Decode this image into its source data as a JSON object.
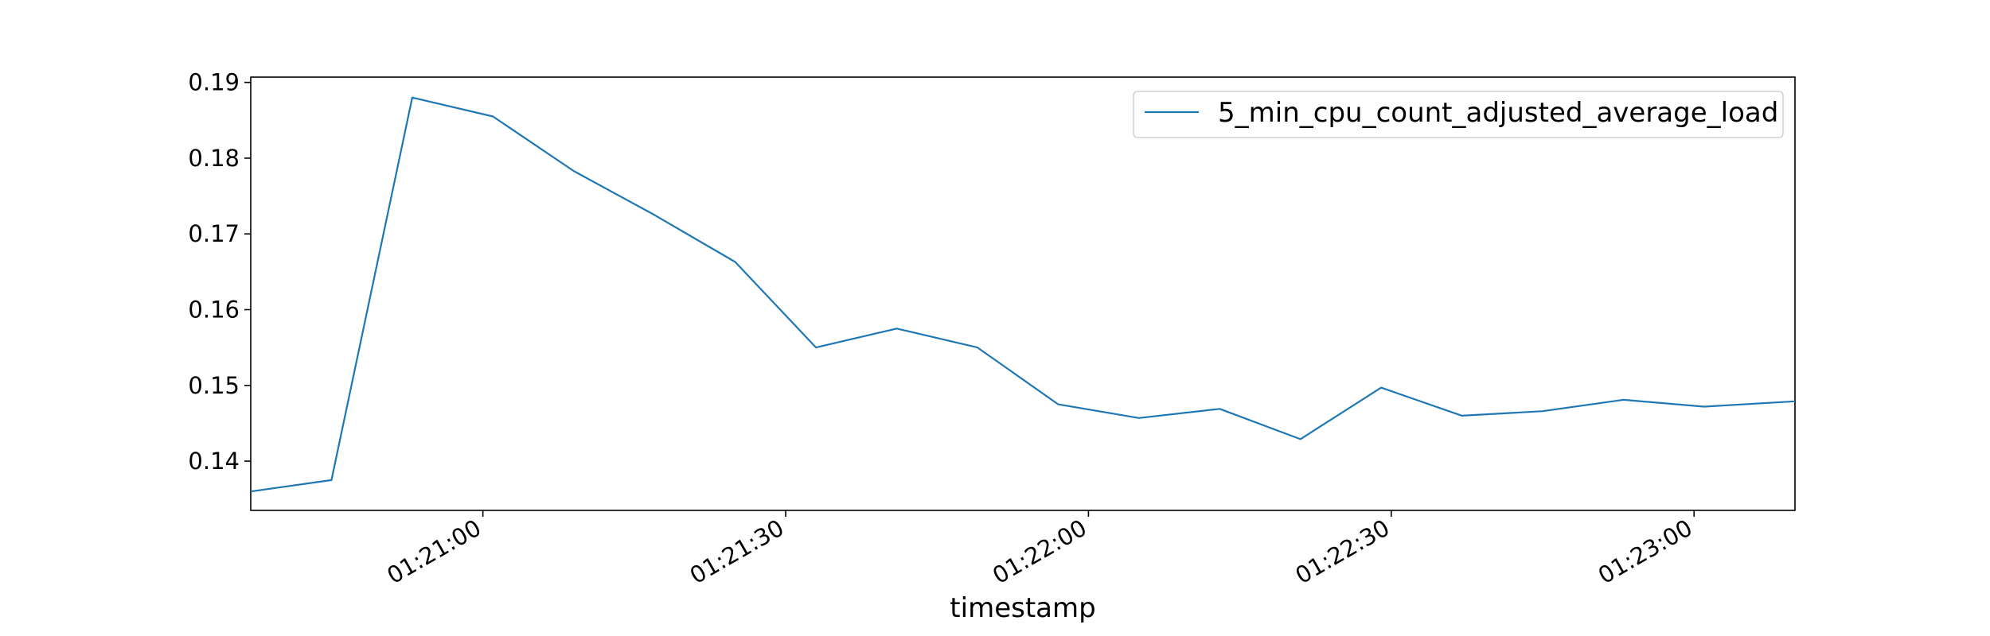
{
  "chart_data": {
    "type": "line",
    "title": "",
    "xlabel": "timestamp",
    "ylabel": "",
    "grid": false,
    "legend_position": "top-right",
    "x_tick_labels": [
      "01:21:00",
      "01:21:30",
      "01:22:00",
      "01:22:30",
      "01:23:00"
    ],
    "x_tick_times": [
      "01:21:00",
      "01:21:30",
      "01:22:00",
      "01:22:30",
      "01:23:00"
    ],
    "y_ticks": [
      0.14,
      0.15,
      0.16,
      0.17,
      0.18,
      0.19
    ],
    "y_tick_labels": [
      "0.14",
      "0.15",
      "0.16",
      "0.17",
      "0.18",
      "0.19"
    ],
    "xlim": [
      "01:20:37",
      "01:23:10"
    ],
    "ylim": [
      0.1335,
      0.1907
    ],
    "series": [
      {
        "name": "5_min_cpu_count_adjusted_average_load",
        "color": "#1f77b4",
        "x": [
          "01:20:37",
          "01:20:45",
          "01:20:53",
          "01:21:01",
          "01:21:09",
          "01:21:17",
          "01:21:25",
          "01:21:33",
          "01:21:41",
          "01:21:49",
          "01:21:57",
          "01:22:05",
          "01:22:13",
          "01:22:21",
          "01:22:29",
          "01:22:37",
          "01:22:45",
          "01:22:53",
          "01:23:01",
          "01:23:10"
        ],
        "values": [
          0.136,
          0.1375,
          0.188,
          0.1855,
          0.1783,
          0.1725,
          0.1663,
          0.155,
          0.1575,
          0.155,
          0.1475,
          0.1457,
          0.1469,
          0.1429,
          0.1497,
          0.146,
          0.1466,
          0.1481,
          0.1472,
          0.1479
        ]
      }
    ]
  }
}
